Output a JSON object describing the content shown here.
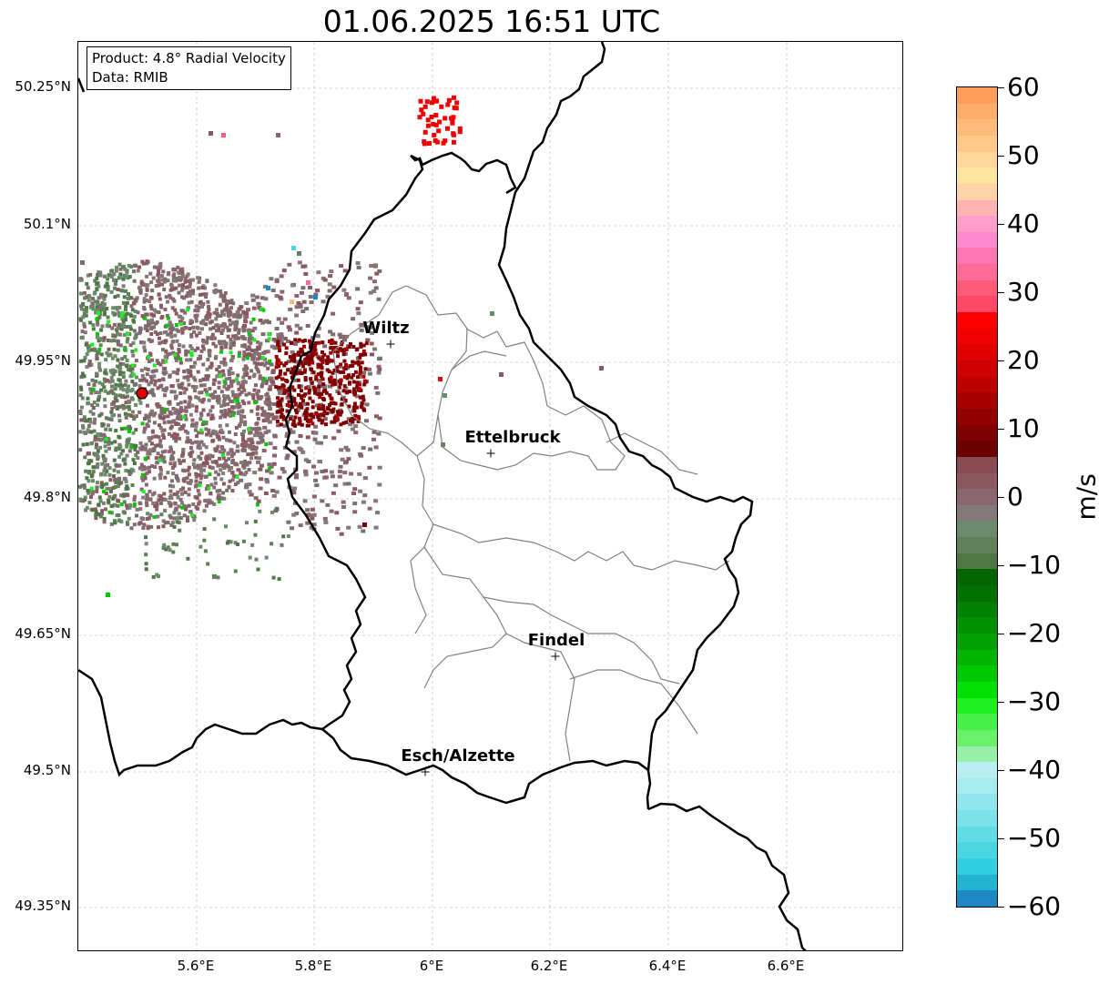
{
  "title": "01.06.2025 16:51 UTC",
  "info_box": {
    "product": "Product: 4.8° Radial Velocity",
    "source": "Data: RMIB"
  },
  "latitude_labels": [
    "50.25°N",
    "50.1°N",
    "49.95°N",
    "49.8°N",
    "49.65°N",
    "49.5°N",
    "49.35°N"
  ],
  "longitude_labels": [
    "5.6°E",
    "5.8°E",
    "6°E",
    "6.2°E",
    "6.4°E",
    "6.6°E"
  ],
  "cities": [
    {
      "name": "Wiltz",
      "lon": 5.933,
      "lat": 49.967
    },
    {
      "name": "Ettelbruck",
      "lon": 6.104,
      "lat": 49.85
    },
    {
      "name": "Findel",
      "lon": 6.21,
      "lat": 49.627
    },
    {
      "name": "Esch/Alzette",
      "lon": 5.99,
      "lat": 49.5
    }
  ],
  "radar_site": {
    "lon": 5.505,
    "lat": 49.914
  },
  "colorbar": {
    "unit": "m/s",
    "min": -60,
    "max": 60,
    "tick_labels": [
      "60",
      "50",
      "40",
      "30",
      "20",
      "10",
      "0",
      "−10",
      "−20",
      "−30",
      "−40",
      "−50",
      "−60"
    ],
    "colors_top_to_bottom": [
      "#ff9e5a",
      "#ffad6a",
      "#ffbb7a",
      "#ffc98a",
      "#ffd79a",
      "#ffe49d",
      "#ffd3a8",
      "#ffb4b4",
      "#ff9ec8",
      "#ff8ad0",
      "#ff76b4",
      "#ff6a96",
      "#ff5a78",
      "#ff4868",
      "#ff0000",
      "#f00000",
      "#e00000",
      "#cf0000",
      "#bd0000",
      "#a80000",
      "#930000",
      "#7e0000",
      "#6a0000",
      "#8a4a52",
      "#8c5860",
      "#8a6670",
      "#857878",
      "#6c8a6c",
      "#5f8059",
      "#4f7645",
      "#006400",
      "#007000",
      "#008000",
      "#009000",
      "#00a000",
      "#00b400",
      "#00c800",
      "#00e000",
      "#1ef01e",
      "#46f046",
      "#6af06a",
      "#96f0a8",
      "#b8eef2",
      "#a6ecef",
      "#90e6ec",
      "#7ae2e8",
      "#62dce4",
      "#4ad6e0",
      "#30d0e0",
      "#22b4d0",
      "#1e88c4"
    ]
  },
  "map_bounds": {
    "lon_min": 5.4,
    "lon_max": 6.8,
    "lat_min": 49.3,
    "lat_max": 50.3
  }
}
